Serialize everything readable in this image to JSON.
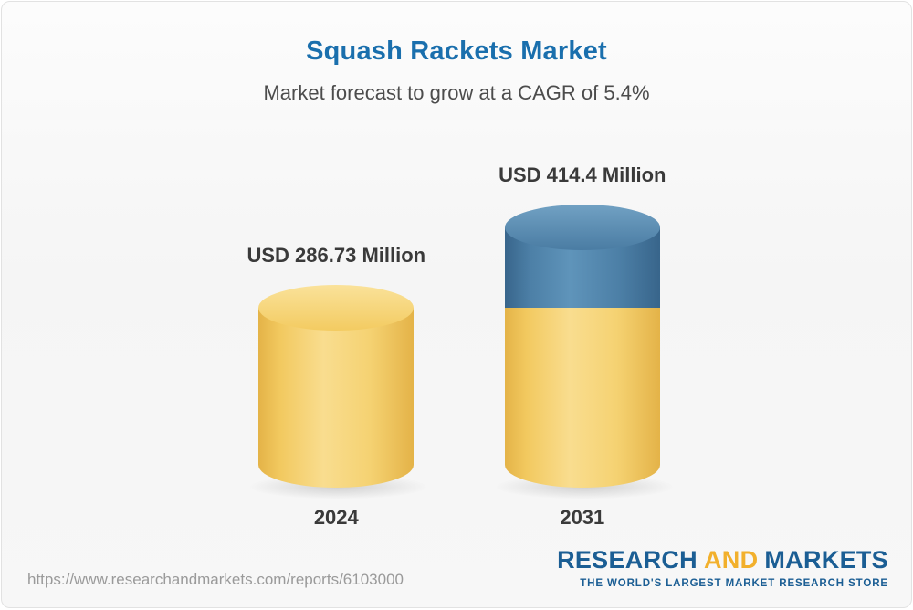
{
  "header": {
    "title": "Squash Rackets Market",
    "subtitle": "Market forecast to grow at a CAGR of 5.4%"
  },
  "chart_data": {
    "type": "bar",
    "title": "Squash Rackets Market",
    "subtitle": "Market forecast to grow at a CAGR of 5.4%",
    "unit": "USD Million",
    "cagr_percent": 5.4,
    "categories": [
      "2024",
      "2031"
    ],
    "values": [
      286.73,
      414.4
    ],
    "value_labels": [
      "USD 286.73 Million",
      "USD 414.4 Million"
    ],
    "growth_segment": {
      "bar": "2031",
      "from": 286.73,
      "to": 414.4
    },
    "colors": {
      "base_bar": "#f2c95f",
      "growth_segment": "#4c7fa6",
      "title": "#1a6fad",
      "label_text": "#3a3a3a"
    },
    "legend": "none",
    "grid": false
  },
  "footer": {
    "url": "https://www.researchandmarkets.com/reports/6103000",
    "logo": {
      "part1": "RESEARCH",
      "part2": "AND",
      "part3": "MARKETS",
      "tagline": "THE WORLD'S LARGEST MARKET RESEARCH STORE"
    }
  }
}
